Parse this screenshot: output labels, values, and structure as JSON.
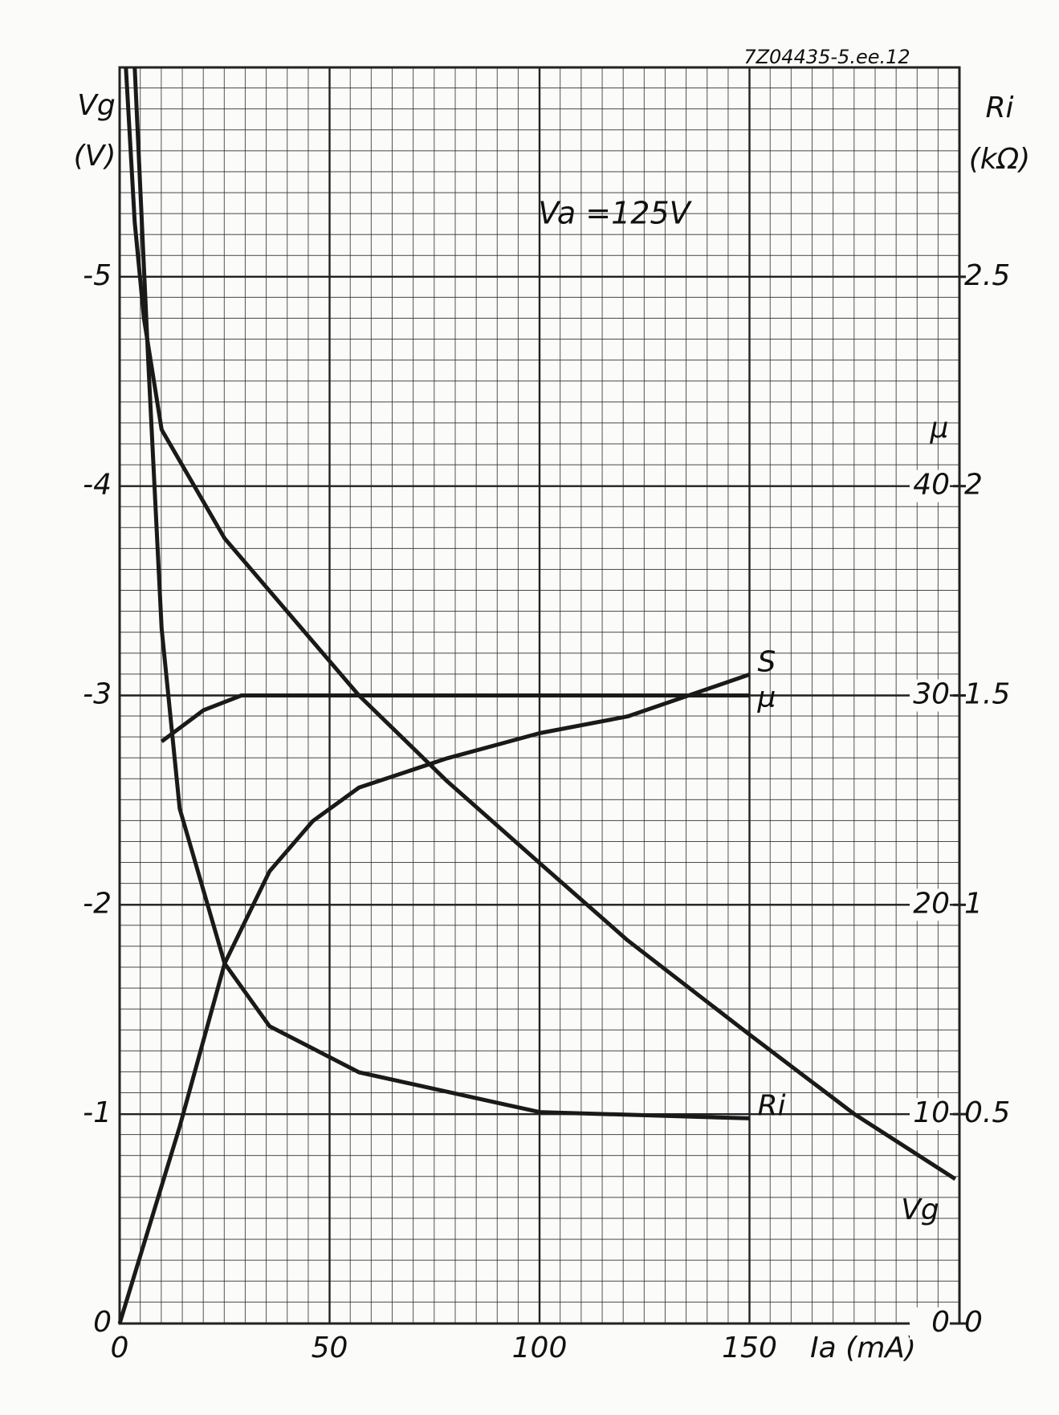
{
  "chart_data": {
    "type": "line",
    "code": "7Z04435-5.ee.12",
    "annotation": "Va =125V",
    "x_label": "Ia (mA)",
    "y_label": [
      "Vg",
      "(V)"
    ],
    "y2_label": [
      "Ri",
      "(kΩ)"
    ],
    "y3_label": "μ",
    "xlim": [
      0,
      200
    ],
    "xticks": [
      0,
      50,
      100,
      150
    ],
    "ylim": [
      0,
      -6
    ],
    "yticks": [
      0,
      -1,
      -2,
      -3,
      -4,
      -5
    ],
    "y2lim": [
      0,
      3
    ],
    "y2ticks": [
      0,
      0.5,
      1,
      1.5,
      2,
      2.5
    ],
    "y3lim": [
      0,
      60
    ],
    "y3ticks": [
      0,
      10,
      20,
      30,
      40
    ],
    "grid": true,
    "series": [
      {
        "name": "Vg",
        "color": "#1a1a1a",
        "axis": "y",
        "x": [
          1.5,
          3.6,
          5.8,
          10,
          25,
          57,
          78,
          100,
          121,
          150,
          175,
          199
        ],
        "values": [
          -6.0,
          -5.26,
          -4.8,
          -4.27,
          -3.75,
          -3.0,
          -2.59,
          -2.2,
          -1.83,
          -1.38,
          -1.0,
          -0.69
        ]
      },
      {
        "name": "Ri",
        "color": "#1a1a1a",
        "axis": "y2",
        "x": [
          3.6,
          6.8,
          10,
          14.3,
          25,
          35.7,
          57,
          100,
          150
        ],
        "values": [
          3.0,
          2.3,
          1.66,
          1.23,
          0.86,
          0.71,
          0.6,
          0.505,
          0.49
        ]
      },
      {
        "name": "μ",
        "color": "#1a1a1a",
        "axis": "y3",
        "x": [
          10,
          20,
          29,
          57,
          100,
          150
        ],
        "values": [
          27.8,
          29.3,
          30,
          30,
          30,
          30
        ]
      },
      {
        "name": "S",
        "color": "#1a1a1a",
        "axis": "y2",
        "x": [
          0,
          14.3,
          25,
          35.7,
          46,
          57,
          78,
          100,
          121,
          150
        ],
        "values": [
          0,
          0.47,
          0.86,
          1.08,
          1.2,
          1.28,
          1.35,
          1.41,
          1.45,
          1.55
        ]
      }
    ]
  }
}
